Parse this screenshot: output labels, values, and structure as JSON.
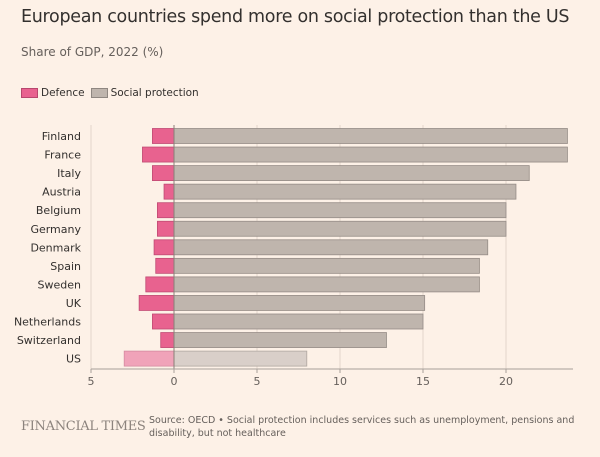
{
  "header": {
    "title": "European countries spend more on social protection than the US",
    "subtitle": "Share of GDP, 2022 (%)"
  },
  "legend": [
    {
      "label": "Defence",
      "color": "#e8628f"
    },
    {
      "label": "Social protection",
      "color": "#bfb5ad"
    }
  ],
  "footer": {
    "brand": "FINANCIAL TIMES",
    "note": "Source: OECD • Social protection includes services such as unemployment, pensions and disability, but not healthcare"
  },
  "colors": {
    "defence": "#e8628f",
    "social": "#bfb5ad",
    "defence_highlight": "#f0a3b9",
    "social_highlight": "#d9cfc9",
    "grid": "#e3d5cb",
    "axis": "#a8a09a"
  },
  "chart_data": {
    "type": "bar",
    "orientation": "horizontal",
    "stacked": "diverging",
    "title": "European countries spend more on social protection than the US",
    "subtitle": "Share of GDP, 2022 (%)",
    "xlabel": "",
    "ylabel": "",
    "xlim": [
      -5,
      24
    ],
    "xticks": [
      -5,
      0,
      5,
      10,
      15,
      20
    ],
    "xtick_labels": [
      "5",
      "0",
      "5",
      "10",
      "15",
      "20"
    ],
    "grid": true,
    "legend_position": "top-left",
    "categories": [
      "Finland",
      "France",
      "Italy",
      "Austria",
      "Belgium",
      "Germany",
      "Denmark",
      "Spain",
      "Sweden",
      "UK",
      "Netherlands",
      "Switzerland",
      "US"
    ],
    "highlight": "US",
    "series": [
      {
        "name": "Defence",
        "values": [
          -1.3,
          -1.9,
          -1.3,
          -0.6,
          -1.0,
          -1.0,
          -1.2,
          -1.1,
          -1.7,
          -2.1,
          -1.3,
          -0.8,
          -3.0
        ]
      },
      {
        "name": "Social protection",
        "values": [
          23.7,
          23.7,
          21.4,
          20.6,
          20.0,
          20.0,
          18.9,
          18.4,
          18.4,
          15.1,
          15.0,
          12.8,
          8.0
        ]
      }
    ]
  }
}
